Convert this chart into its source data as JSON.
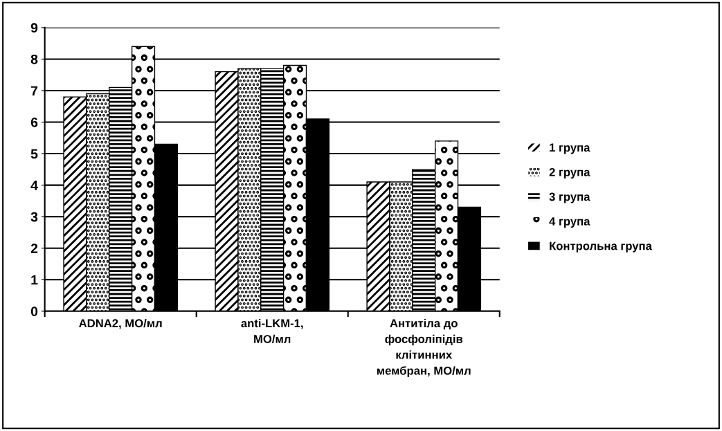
{
  "chart_data": {
    "type": "bar",
    "categories": [
      "ADNA2, МО/мл",
      "anti-LKM-1,\nМО/мл",
      "Антитіла до\nфосфоліпідів\nклітинних\nмембран, МО/мл"
    ],
    "series": [
      {
        "name": "1 група",
        "color": "#000000",
        "values": [
          6.8,
          7.6,
          4.1
        ]
      },
      {
        "name": "2 група",
        "color": "#000000",
        "values": [
          6.9,
          7.7,
          4.1
        ]
      },
      {
        "name": "3 група",
        "color": "#000000",
        "values": [
          7.1,
          7.7,
          4.5
        ]
      },
      {
        "name": "4 група",
        "color": "#000000",
        "values": [
          8.4,
          7.8,
          5.4
        ]
      },
      {
        "name": "Контрольна група",
        "color": "#000000",
        "values": [
          5.3,
          6.1,
          3.3
        ]
      }
    ],
    "ylim": [
      0,
      9
    ],
    "yticks": [
      0,
      1,
      2,
      3,
      4,
      5,
      6,
      7,
      8,
      9
    ],
    "grid": "y",
    "legend": "right"
  }
}
